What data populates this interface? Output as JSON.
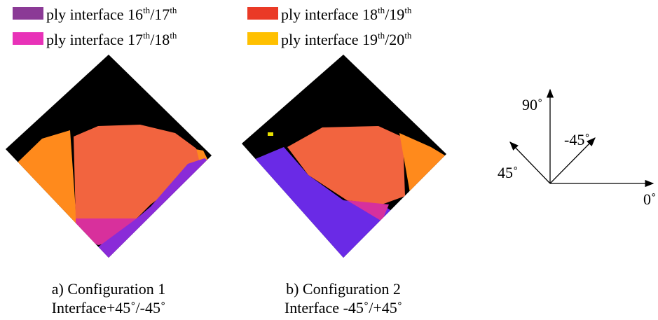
{
  "legend": [
    {
      "color": "#8b3a96",
      "label": [
        "ply interface 16",
        "th",
        "/17",
        "th"
      ]
    },
    {
      "color": "#e832b8",
      "label": [
        "ply interface 17",
        "th",
        "/18",
        "th"
      ]
    },
    {
      "color": "#ea3a26",
      "label": [
        "ply interface 18",
        "th",
        "/19",
        "th"
      ]
    },
    {
      "color": "#ffc000",
      "label": [
        "ply interface 19",
        "th",
        "/20",
        "th"
      ]
    }
  ],
  "panels": [
    {
      "caption": "a) Configuration 1",
      "subcaption": "Interface+45˚/-45˚"
    },
    {
      "caption": "b) Configuration 2",
      "subcaption": "Interface -45˚/+45˚"
    }
  ],
  "orientation": {
    "labels": [
      "90˚",
      "-45˚",
      "45˚",
      "0˚"
    ]
  }
}
